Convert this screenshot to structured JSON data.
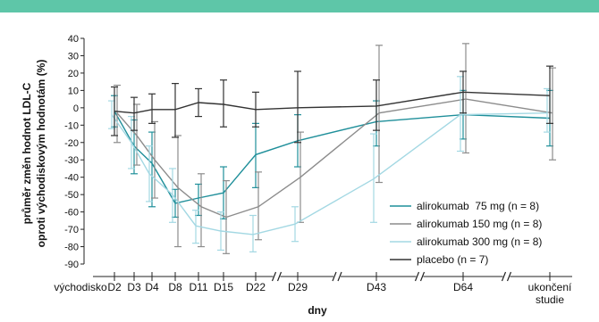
{
  "chart_data": {
    "type": "line",
    "ylabel_line1": "průměr změn hodnot LDL-C",
    "ylabel_line2": "oproti východiskovým hodnotám (%)",
    "xlabel": "dny",
    "ylim": [
      -90,
      40
    ],
    "yticks": [
      40,
      30,
      20,
      10,
      0,
      -10,
      -20,
      -30,
      -40,
      -50,
      -60,
      -70,
      -80,
      -90
    ],
    "x_categories": [
      "východisko",
      "D2",
      "D3",
      "D4",
      "D8",
      "D11",
      "D15",
      "D22",
      "D29",
      "D43",
      "D64",
      "ukončení studie"
    ],
    "x_category_lines": [
      [
        "východisko"
      ],
      [
        "D2"
      ],
      [
        "D3"
      ],
      [
        "D4"
      ],
      [
        "D8"
      ],
      [
        "D11"
      ],
      [
        "D15"
      ],
      [
        "D22"
      ],
      [
        "D29"
      ],
      [
        "D43"
      ],
      [
        "D64"
      ],
      [
        "ukončení",
        "studie"
      ]
    ],
    "series": [
      {
        "name": "alirokumab  75 mg (n = 8)",
        "color": "#1f8f9a",
        "x": [
          "D2",
          "D3",
          "D4",
          "D8",
          "D11",
          "D15",
          "D22",
          "D29",
          "D43",
          "D64",
          "ukončení studie"
        ],
        "values": [
          -2,
          -22,
          -32,
          -55,
          -52,
          -49,
          -27,
          -19,
          -8,
          -4,
          -6
        ],
        "err_low": [
          -11,
          -38,
          -57,
          -63,
          -62,
          -64,
          -46,
          -34,
          -22,
          -18,
          -22
        ],
        "err_high": [
          7,
          -7,
          -14,
          -47,
          -44,
          -34,
          -9,
          -4,
          4,
          10,
          10
        ]
      },
      {
        "name": "alirokumab 150 mg (n = 8)",
        "color": "#8c8c8c",
        "x": [
          "D2",
          "D3",
          "D4",
          "D8",
          "D11",
          "D15",
          "D22",
          "D29",
          "D43",
          "D64",
          "ukončení studie"
        ],
        "values": [
          -3,
          -16,
          -30,
          -46,
          -57,
          -63,
          -57,
          -40,
          -3,
          5,
          -3
        ],
        "err_low": [
          -20,
          -33,
          -52,
          -80,
          -80,
          -84,
          -76,
          -66,
          -43,
          -26,
          -30
        ],
        "err_high": [
          13,
          2,
          -8,
          -16,
          -38,
          -42,
          -37,
          -14,
          36,
          37,
          23
        ]
      },
      {
        "name": "alirokumab 300 mg (n = 8)",
        "color": "#a3d8e3",
        "x": [
          "D2",
          "D3",
          "D4",
          "D8",
          "D11",
          "D15",
          "D22",
          "D29",
          "D43",
          "D64",
          "ukončení studie"
        ],
        "values": [
          -4,
          -20,
          -38,
          -50,
          -68,
          -71,
          -73,
          -67,
          -41,
          -4,
          -3
        ],
        "err_low": [
          -12,
          -35,
          -54,
          -66,
          -78,
          -82,
          -83,
          -77,
          -66,
          -25,
          -14
        ],
        "err_high": [
          4,
          -5,
          -22,
          -35,
          -59,
          -60,
          -62,
          -57,
          -15,
          18,
          11
        ]
      },
      {
        "name": "placebo (n = 7)",
        "color": "#333333",
        "x": [
          "D2",
          "D3",
          "D4",
          "D8",
          "D11",
          "D15",
          "D22",
          "D29",
          "D43",
          "D64",
          "ukončení studie"
        ],
        "values": [
          -2,
          -3,
          -1,
          -1,
          3,
          2,
          -1,
          0,
          1,
          9,
          7
        ],
        "err_low": [
          -16,
          -13,
          -9,
          -17,
          -5,
          -11,
          -11,
          -20,
          -13,
          -3,
          -9
        ],
        "err_high": [
          12,
          6,
          8,
          14,
          11,
          16,
          9,
          21,
          16,
          21,
          24
        ]
      }
    ],
    "legend": "inside right, lower half",
    "axis_breaks_between": [
      "D22|D29",
      "D29|D43",
      "D43|D64",
      "D64|ukončení studie"
    ]
  },
  "colors": {
    "top_bar": "#5ec6a8"
  }
}
